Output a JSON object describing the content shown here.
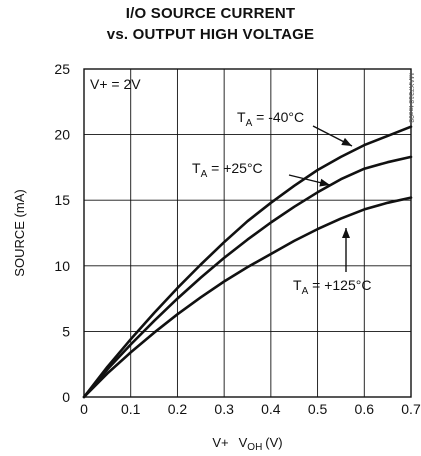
{
  "chart_data": {
    "type": "line",
    "title": "I/O SOURCE CURRENT",
    "subtitle": "vs. OUTPUT HIGH VOLTAGE",
    "xlabel_prefix": "V+",
    "xlabel_main": "V",
    "xlabel_sub": "OH",
    "xlabel_unit": "(V)",
    "ylabel": "SOURCE (mA)",
    "xlim": [
      0,
      0.7
    ],
    "ylim": [
      0,
      25
    ],
    "x_ticks": [
      "0",
      "0.1",
      "0.2",
      "0.3",
      "0.4",
      "0.5",
      "0.6",
      "0.7"
    ],
    "y_ticks": [
      "0",
      "5",
      "10",
      "15",
      "20",
      "25"
    ],
    "grid": true,
    "condition": "V+ = 2V",
    "watermark": "MAX7318 toc08",
    "series": [
      {
        "name_main": "T",
        "name_sub": "A",
        "name_rest": " = -40°C",
        "x": [
          0,
          0.05,
          0.1,
          0.15,
          0.2,
          0.25,
          0.3,
          0.35,
          0.4,
          0.45,
          0.5,
          0.55,
          0.6,
          0.65,
          0.7
        ],
        "y": [
          0,
          2.3,
          4.4,
          6.4,
          8.3,
          10.1,
          11.8,
          13.4,
          14.8,
          16.1,
          17.3,
          18.3,
          19.2,
          19.9,
          20.6
        ]
      },
      {
        "name_main": "T",
        "name_sub": "A",
        "name_rest": " = +25°C",
        "x": [
          0,
          0.05,
          0.1,
          0.15,
          0.2,
          0.25,
          0.3,
          0.35,
          0.4,
          0.45,
          0.5,
          0.55,
          0.6,
          0.65,
          0.7
        ],
        "y": [
          0,
          2.1,
          4.0,
          5.8,
          7.5,
          9.1,
          10.6,
          12.0,
          13.3,
          14.5,
          15.6,
          16.6,
          17.4,
          17.9,
          18.3
        ]
      },
      {
        "name_main": "T",
        "name_sub": "A",
        "name_rest": " = +125°C",
        "x": [
          0,
          0.05,
          0.1,
          0.15,
          0.2,
          0.25,
          0.3,
          0.35,
          0.4,
          0.45,
          0.5,
          0.55,
          0.6,
          0.65,
          0.7
        ],
        "y": [
          0,
          1.8,
          3.4,
          4.9,
          6.3,
          7.6,
          8.8,
          9.9,
          10.9,
          11.9,
          12.8,
          13.6,
          14.3,
          14.8,
          15.2
        ]
      }
    ]
  }
}
